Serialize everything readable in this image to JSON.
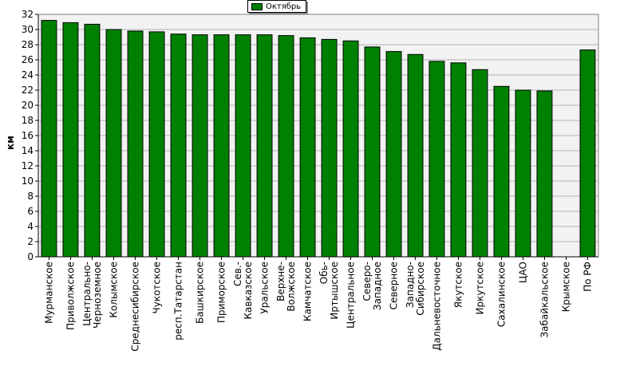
{
  "legend": {
    "series_name": "Октябрь",
    "color": "#008000"
  },
  "chart_data": {
    "type": "bar",
    "title": "",
    "xlabel": "",
    "ylabel": "км",
    "ylim": [
      0,
      32
    ],
    "yticks": [
      0,
      2,
      4,
      6,
      8,
      10,
      12,
      14,
      16,
      18,
      20,
      22,
      24,
      26,
      28,
      30,
      32
    ],
    "grid": true,
    "legend_position": "top-center",
    "categories": [
      [
        "Мурманское"
      ],
      [
        "Приволжское"
      ],
      [
        "Центрально-",
        "Черноземное"
      ],
      [
        "Колымское"
      ],
      [
        "Среднесибирское"
      ],
      [
        "Чукотское"
      ],
      [
        "респ.Татарстан"
      ],
      [
        "Башкирское"
      ],
      [
        "Приморское"
      ],
      [
        "Сев.-",
        "Кавказское"
      ],
      [
        "Уральское"
      ],
      [
        "Верхне-",
        "Волжское"
      ],
      [
        "Камчатское"
      ],
      [
        "Обь-",
        "Иртышское"
      ],
      [
        "Центральное"
      ],
      [
        "Северо-",
        "Западное"
      ],
      [
        "Северное"
      ],
      [
        "Западно-",
        "Сибирское"
      ],
      [
        "Дальневосточное"
      ],
      [
        "Якутское"
      ],
      [
        "Иркутское"
      ],
      [
        "Сахалинское"
      ],
      [
        "ЦАО"
      ],
      [
        "Забайкальское"
      ],
      [
        "Крымское"
      ],
      [
        "По РФ"
      ]
    ],
    "series": [
      {
        "name": "Октябрь",
        "color": "#008000",
        "values": [
          31.2,
          30.9,
          30.7,
          30.0,
          29.8,
          29.7,
          29.4,
          29.3,
          29.3,
          29.3,
          29.3,
          29.2,
          28.9,
          28.7,
          28.5,
          27.7,
          27.1,
          26.7,
          25.8,
          25.6,
          24.7,
          22.5,
          22.0,
          21.9,
          0,
          27.3
        ]
      }
    ]
  }
}
